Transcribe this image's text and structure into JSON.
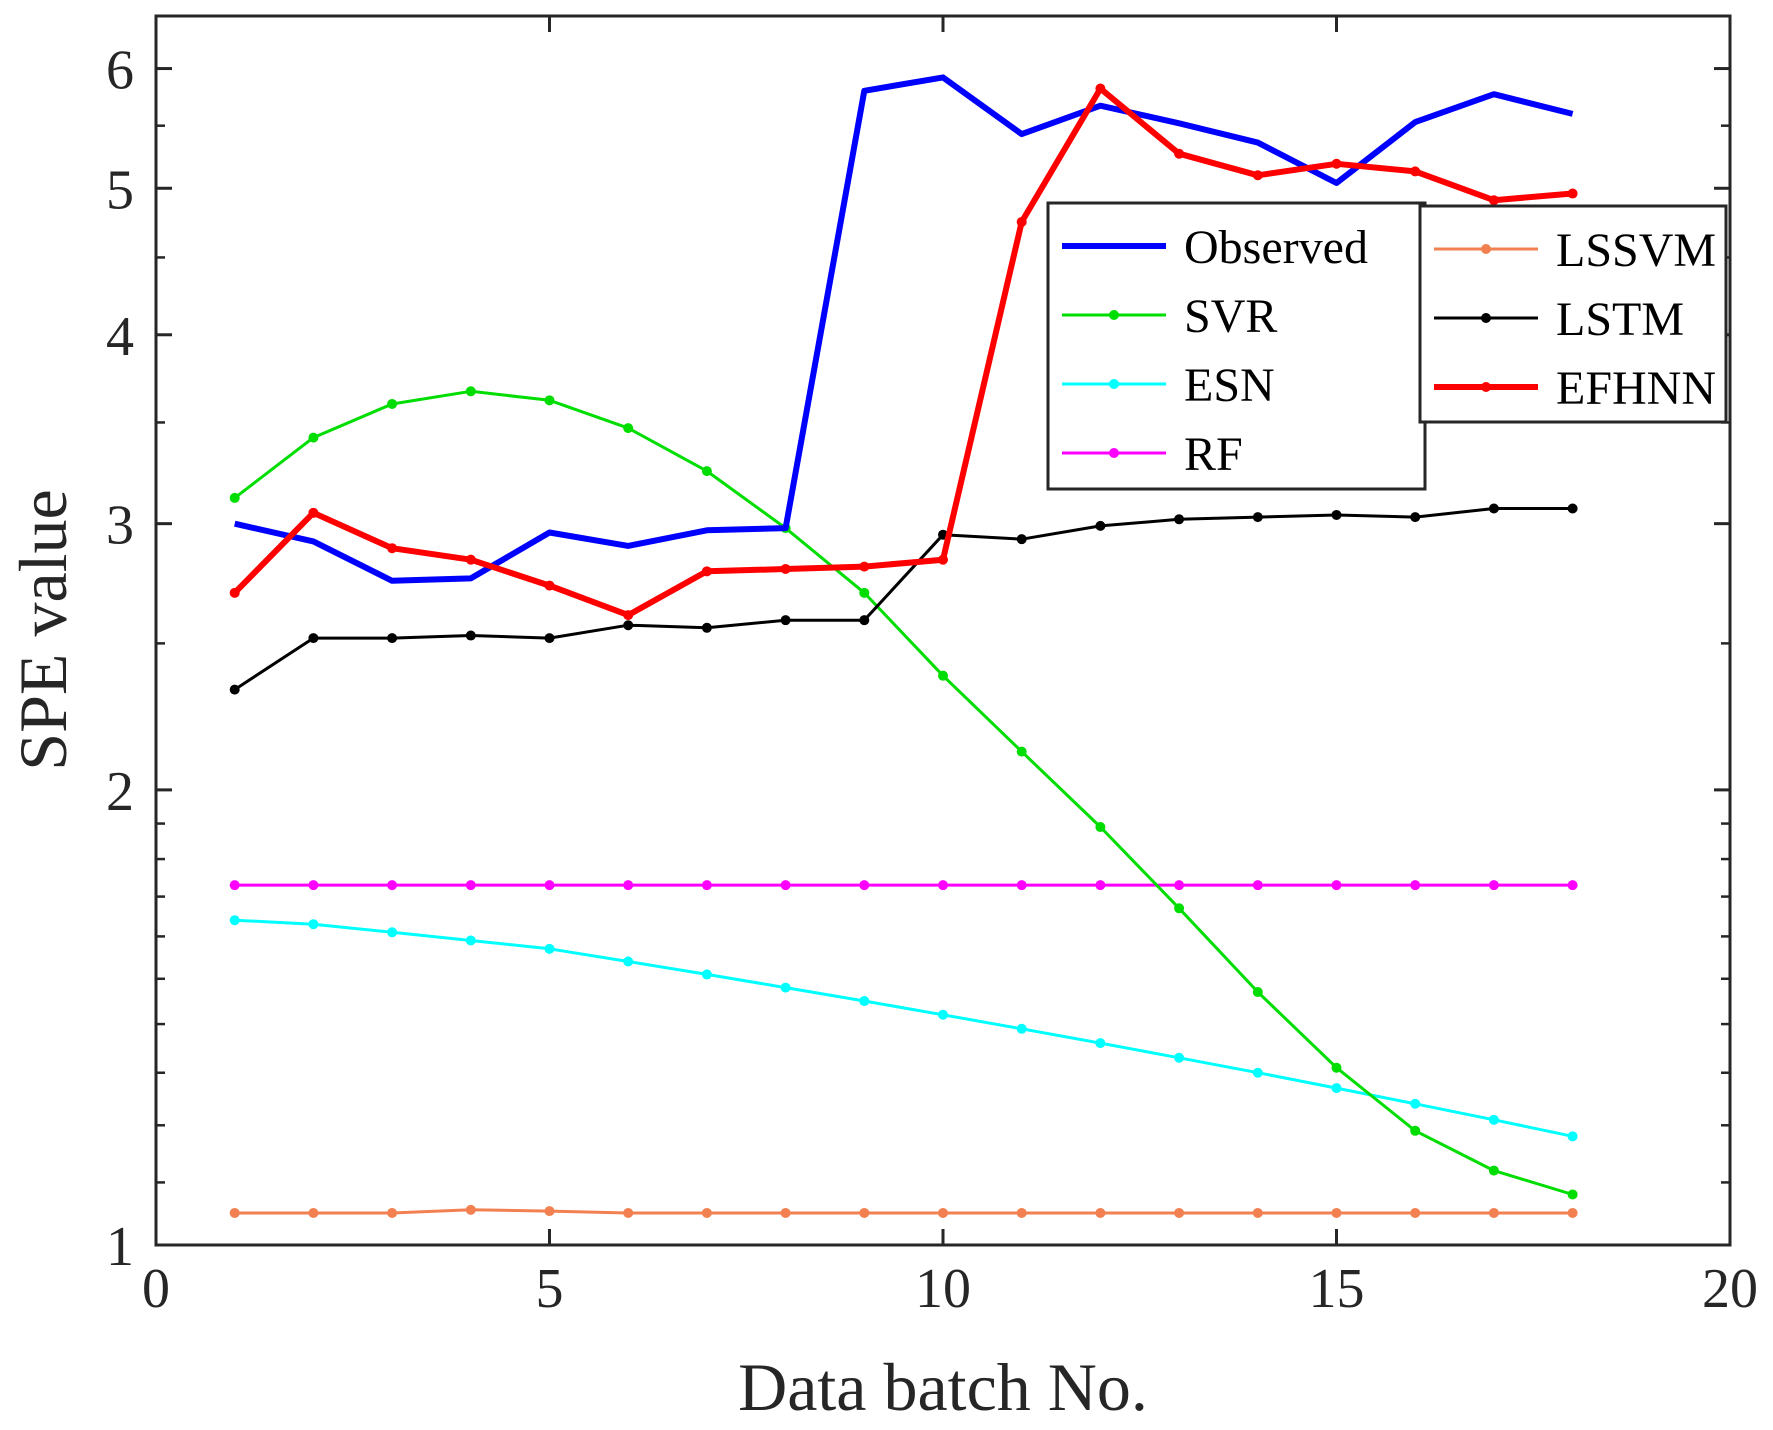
{
  "chart_data": {
    "type": "line",
    "xlabel": "Data batch No.",
    "ylabel": "SPE value",
    "xlim": [
      0,
      20
    ],
    "ylim": [
      1,
      6.5
    ],
    "yscale": "log",
    "xticks": [
      0,
      5,
      10,
      15,
      20
    ],
    "xtick_labels": [
      "0",
      "5",
      "10",
      "15",
      "20"
    ],
    "yticks": [
      1,
      2,
      3,
      4,
      5,
      6
    ],
    "ytick_labels": [
      "1",
      "2",
      "3",
      "4",
      "5",
      "6"
    ],
    "x": [
      1,
      2,
      3,
      4,
      5,
      6,
      7,
      8,
      9,
      10,
      11,
      12,
      13,
      14,
      15,
      16,
      17,
      18
    ],
    "legend_left": [
      "Observed",
      "SVR",
      "ESN",
      "RF"
    ],
    "legend_right": [
      "LSSVM",
      "LSTM",
      "EFHNN"
    ],
    "series": [
      {
        "name": "Observed",
        "color": "#0000ff",
        "markers": false,
        "thick": true,
        "values": [
          3.0,
          2.92,
          2.75,
          2.76,
          2.96,
          2.9,
          2.97,
          2.98,
          5.8,
          5.92,
          5.43,
          5.67,
          5.52,
          5.36,
          5.04,
          5.53,
          5.77,
          5.6
        ]
      },
      {
        "name": "SVR",
        "color": "#00dd00",
        "markers": true,
        "thick": false,
        "values": [
          3.12,
          3.42,
          3.6,
          3.67,
          3.62,
          3.47,
          3.25,
          2.98,
          2.7,
          2.38,
          2.12,
          1.89,
          1.67,
          1.47,
          1.31,
          1.19,
          1.12,
          1.08
        ]
      },
      {
        "name": "ESN",
        "color": "#00ffff",
        "markers": true,
        "thick": false,
        "values": [
          1.64,
          1.63,
          1.61,
          1.59,
          1.57,
          1.54,
          1.51,
          1.48,
          1.45,
          1.42,
          1.39,
          1.36,
          1.33,
          1.3,
          1.27,
          1.24,
          1.21,
          1.18
        ]
      },
      {
        "name": "RF",
        "color": "#ff00ff",
        "markers": true,
        "thick": false,
        "values": [
          1.73,
          1.73,
          1.73,
          1.73,
          1.73,
          1.73,
          1.73,
          1.73,
          1.73,
          1.73,
          1.73,
          1.73,
          1.73,
          1.73,
          1.73,
          1.73,
          1.73,
          1.73
        ]
      },
      {
        "name": "LSSVM",
        "color": "#f28050",
        "markers": true,
        "thick": false,
        "values": [
          1.05,
          1.05,
          1.05,
          1.055,
          1.053,
          1.05,
          1.05,
          1.05,
          1.05,
          1.05,
          1.05,
          1.05,
          1.05,
          1.05,
          1.05,
          1.05,
          1.05,
          1.05
        ]
      },
      {
        "name": "LSTM",
        "color": "#000000",
        "markers": true,
        "thick": false,
        "values": [
          2.33,
          2.52,
          2.52,
          2.53,
          2.52,
          2.57,
          2.56,
          2.59,
          2.59,
          2.95,
          2.93,
          2.99,
          3.02,
          3.03,
          3.04,
          3.03,
          3.07,
          3.07
        ]
      },
      {
        "name": "EFHNN",
        "color": "#ff0000",
        "markers": true,
        "thick": true,
        "values": [
          2.7,
          3.05,
          2.89,
          2.84,
          2.73,
          2.61,
          2.79,
          2.8,
          2.81,
          2.84,
          4.75,
          5.82,
          5.27,
          5.1,
          5.19,
          5.13,
          4.91,
          4.96
        ]
      }
    ]
  }
}
